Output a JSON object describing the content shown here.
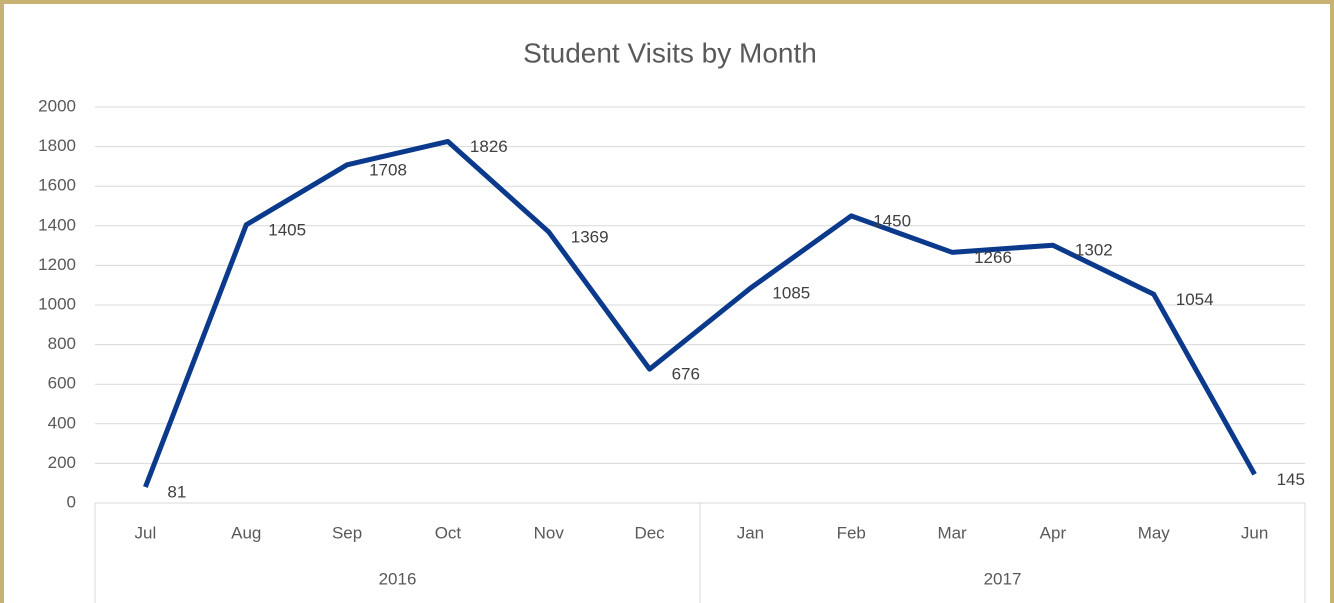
{
  "chart_data": {
    "type": "line",
    "title": "Student Visits by Month",
    "categories": [
      "Jul",
      "Aug",
      "Sep",
      "Oct",
      "Nov",
      "Dec",
      "Jan",
      "Feb",
      "Mar",
      "Apr",
      "May",
      "Jun"
    ],
    "groups": [
      {
        "label": "2016",
        "count": 6
      },
      {
        "label": "2017",
        "count": 6
      }
    ],
    "series": [
      {
        "name": "Student Visits",
        "color": "#0b3a8c",
        "values": [
          81,
          1405,
          1708,
          1826,
          1369,
          676,
          1085,
          1450,
          1266,
          1302,
          1054,
          145
        ]
      }
    ],
    "ylim": [
      0,
      2000
    ],
    "yticks": [
      0,
      200,
      400,
      600,
      800,
      1000,
      1200,
      1400,
      1600,
      1800,
      2000
    ],
    "grid": true,
    "data_labels": true
  }
}
